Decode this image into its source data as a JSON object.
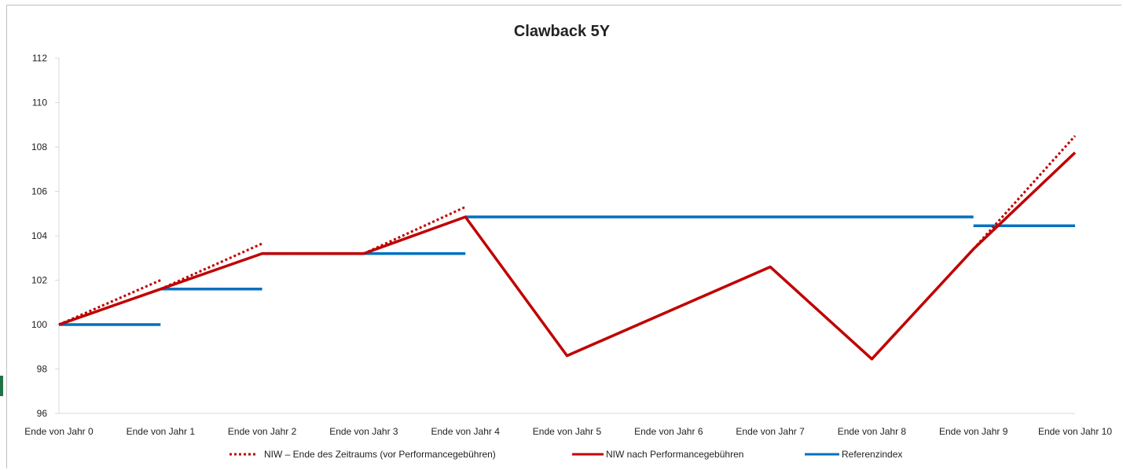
{
  "chart_data": {
    "type": "line",
    "title": "Clawback 5Y",
    "xlabel": "",
    "ylabel": "",
    "ylim": [
      96,
      112
    ],
    "yticks": [
      96,
      98,
      100,
      102,
      104,
      106,
      108,
      110,
      112
    ],
    "categories": [
      "Ende von Jahr 0",
      "Ende von Jahr 1",
      "Ende von Jahr 2",
      "Ende von Jahr 3",
      "Ende von Jahr 4",
      "Ende von Jahr 5",
      "Ende von Jahr 6",
      "Ende von Jahr 7",
      "Ende von Jahr 8",
      "Ende von Jahr 9",
      "Ende von Jahr 10"
    ],
    "grid": false,
    "legend_position": "bottom",
    "series": [
      {
        "name": "NIW – Ende des Zeitraums (vor Performancegebühren)",
        "color": "#C00000",
        "style": "dotted",
        "segments": [
          [
            [
              0,
              100.0
            ],
            [
              1,
              102.0
            ]
          ],
          [
            [
              1,
              101.6
            ],
            [
              2,
              103.65
            ]
          ],
          [
            [
              2,
              103.2
            ],
            [
              3,
              103.2
            ]
          ],
          [
            [
              3,
              103.2
            ],
            [
              4,
              105.3
            ]
          ],
          [
            [
              9,
              103.4
            ],
            [
              10,
              108.5
            ]
          ]
        ]
      },
      {
        "name": "NIW nach Performancegebühren",
        "color": "#C00000",
        "style": "solid",
        "segments": [
          [
            [
              0,
              100.0
            ],
            [
              1,
              101.6
            ],
            [
              2,
              103.2
            ],
            [
              3,
              103.2
            ],
            [
              4,
              104.85
            ],
            [
              5,
              98.6
            ],
            [
              6,
              100.6
            ],
            [
              7,
              102.6
            ],
            [
              8,
              98.45
            ],
            [
              9,
              103.4
            ],
            [
              10,
              107.75
            ]
          ]
        ]
      },
      {
        "name": "Referenzindex",
        "color": "#0070C0",
        "style": "solid",
        "segments": [
          [
            [
              0,
              100.0
            ],
            [
              1,
              100.0
            ]
          ],
          [
            [
              1,
              101.6
            ],
            [
              2,
              101.6
            ]
          ],
          [
            [
              2,
              103.2
            ],
            [
              4,
              103.2
            ]
          ],
          [
            [
              4,
              104.85
            ],
            [
              9,
              104.85
            ]
          ],
          [
            [
              9,
              104.45
            ],
            [
              10,
              104.45
            ]
          ]
        ]
      }
    ]
  }
}
